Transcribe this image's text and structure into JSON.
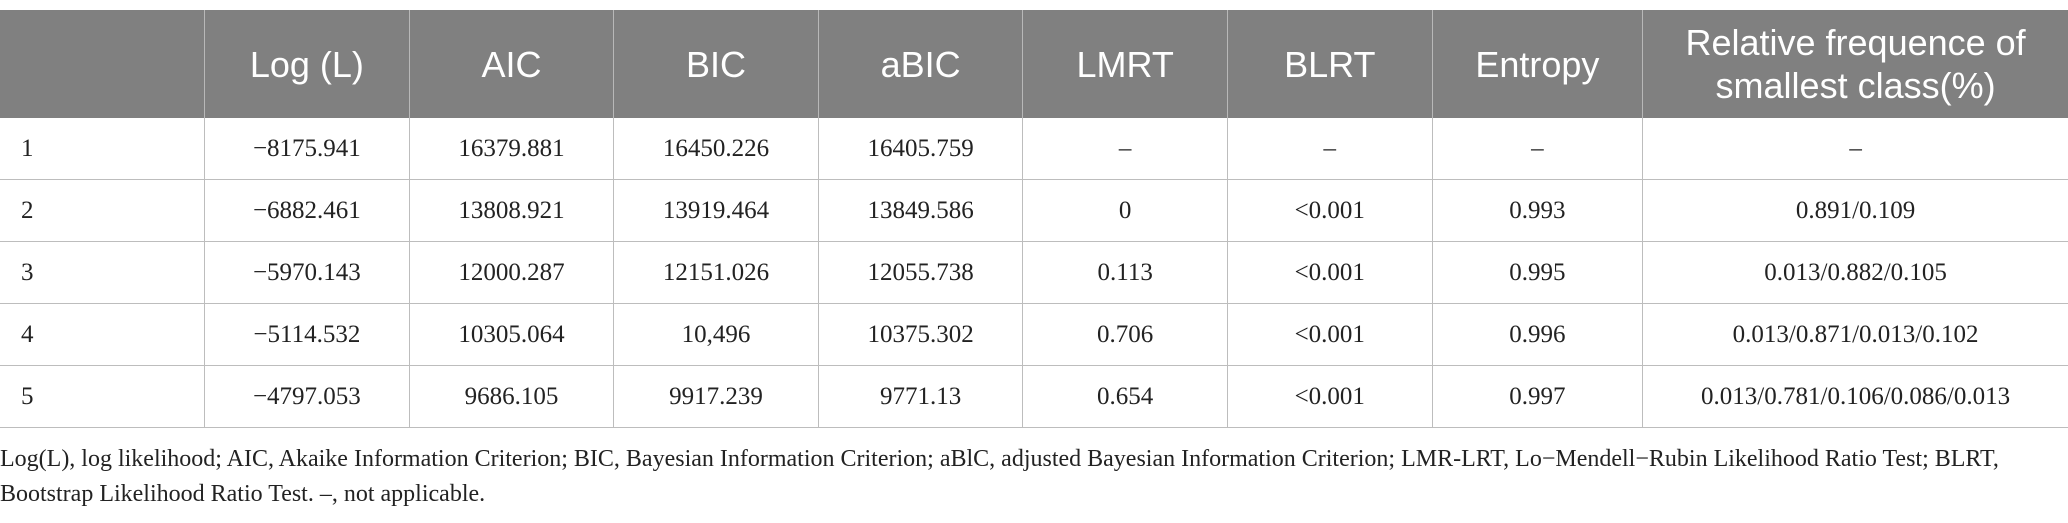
{
  "table": {
    "headers": [
      "",
      "Log (L)",
      "AIC",
      "BIC",
      "aBIC",
      "LMRT",
      "BLRT",
      "Entropy",
      "Relative frequence of smallest class(%)"
    ],
    "rows": [
      [
        "1",
        "−8175.941",
        "16379.881",
        "16450.226",
        "16405.759",
        "–",
        "–",
        "–",
        "–"
      ],
      [
        "2",
        "−6882.461",
        "13808.921",
        "13919.464",
        "13849.586",
        "0",
        "<0.001",
        "0.993",
        "0.891/0.109"
      ],
      [
        "3",
        "−5970.143",
        "12000.287",
        "12151.026",
        "12055.738",
        "0.113",
        "<0.001",
        "0.995",
        "0.013/0.882/0.105"
      ],
      [
        "4",
        "−5114.532",
        "10305.064",
        "10,496",
        "10375.302",
        "0.706",
        "<0.001",
        "0.996",
        "0.013/0.871/0.013/0.102"
      ],
      [
        "5",
        "−4797.053",
        "9686.105",
        "9917.239",
        "9771.13",
        "0.654",
        "<0.001",
        "0.997",
        "0.013/0.781/0.106/0.086/0.013"
      ]
    ]
  },
  "footnote": "Log(L), log likelihood; AIC, Akaike Information Criterion; BIC, Bayesian Information Criterion; aBlC, adjusted Bayesian Information Criterion; LMR-LRT, Lo−Mendell−Rubin Likelihood Ratio Test; BLRT, Bootstrap Likelihood Ratio Test. –, not applicable."
}
